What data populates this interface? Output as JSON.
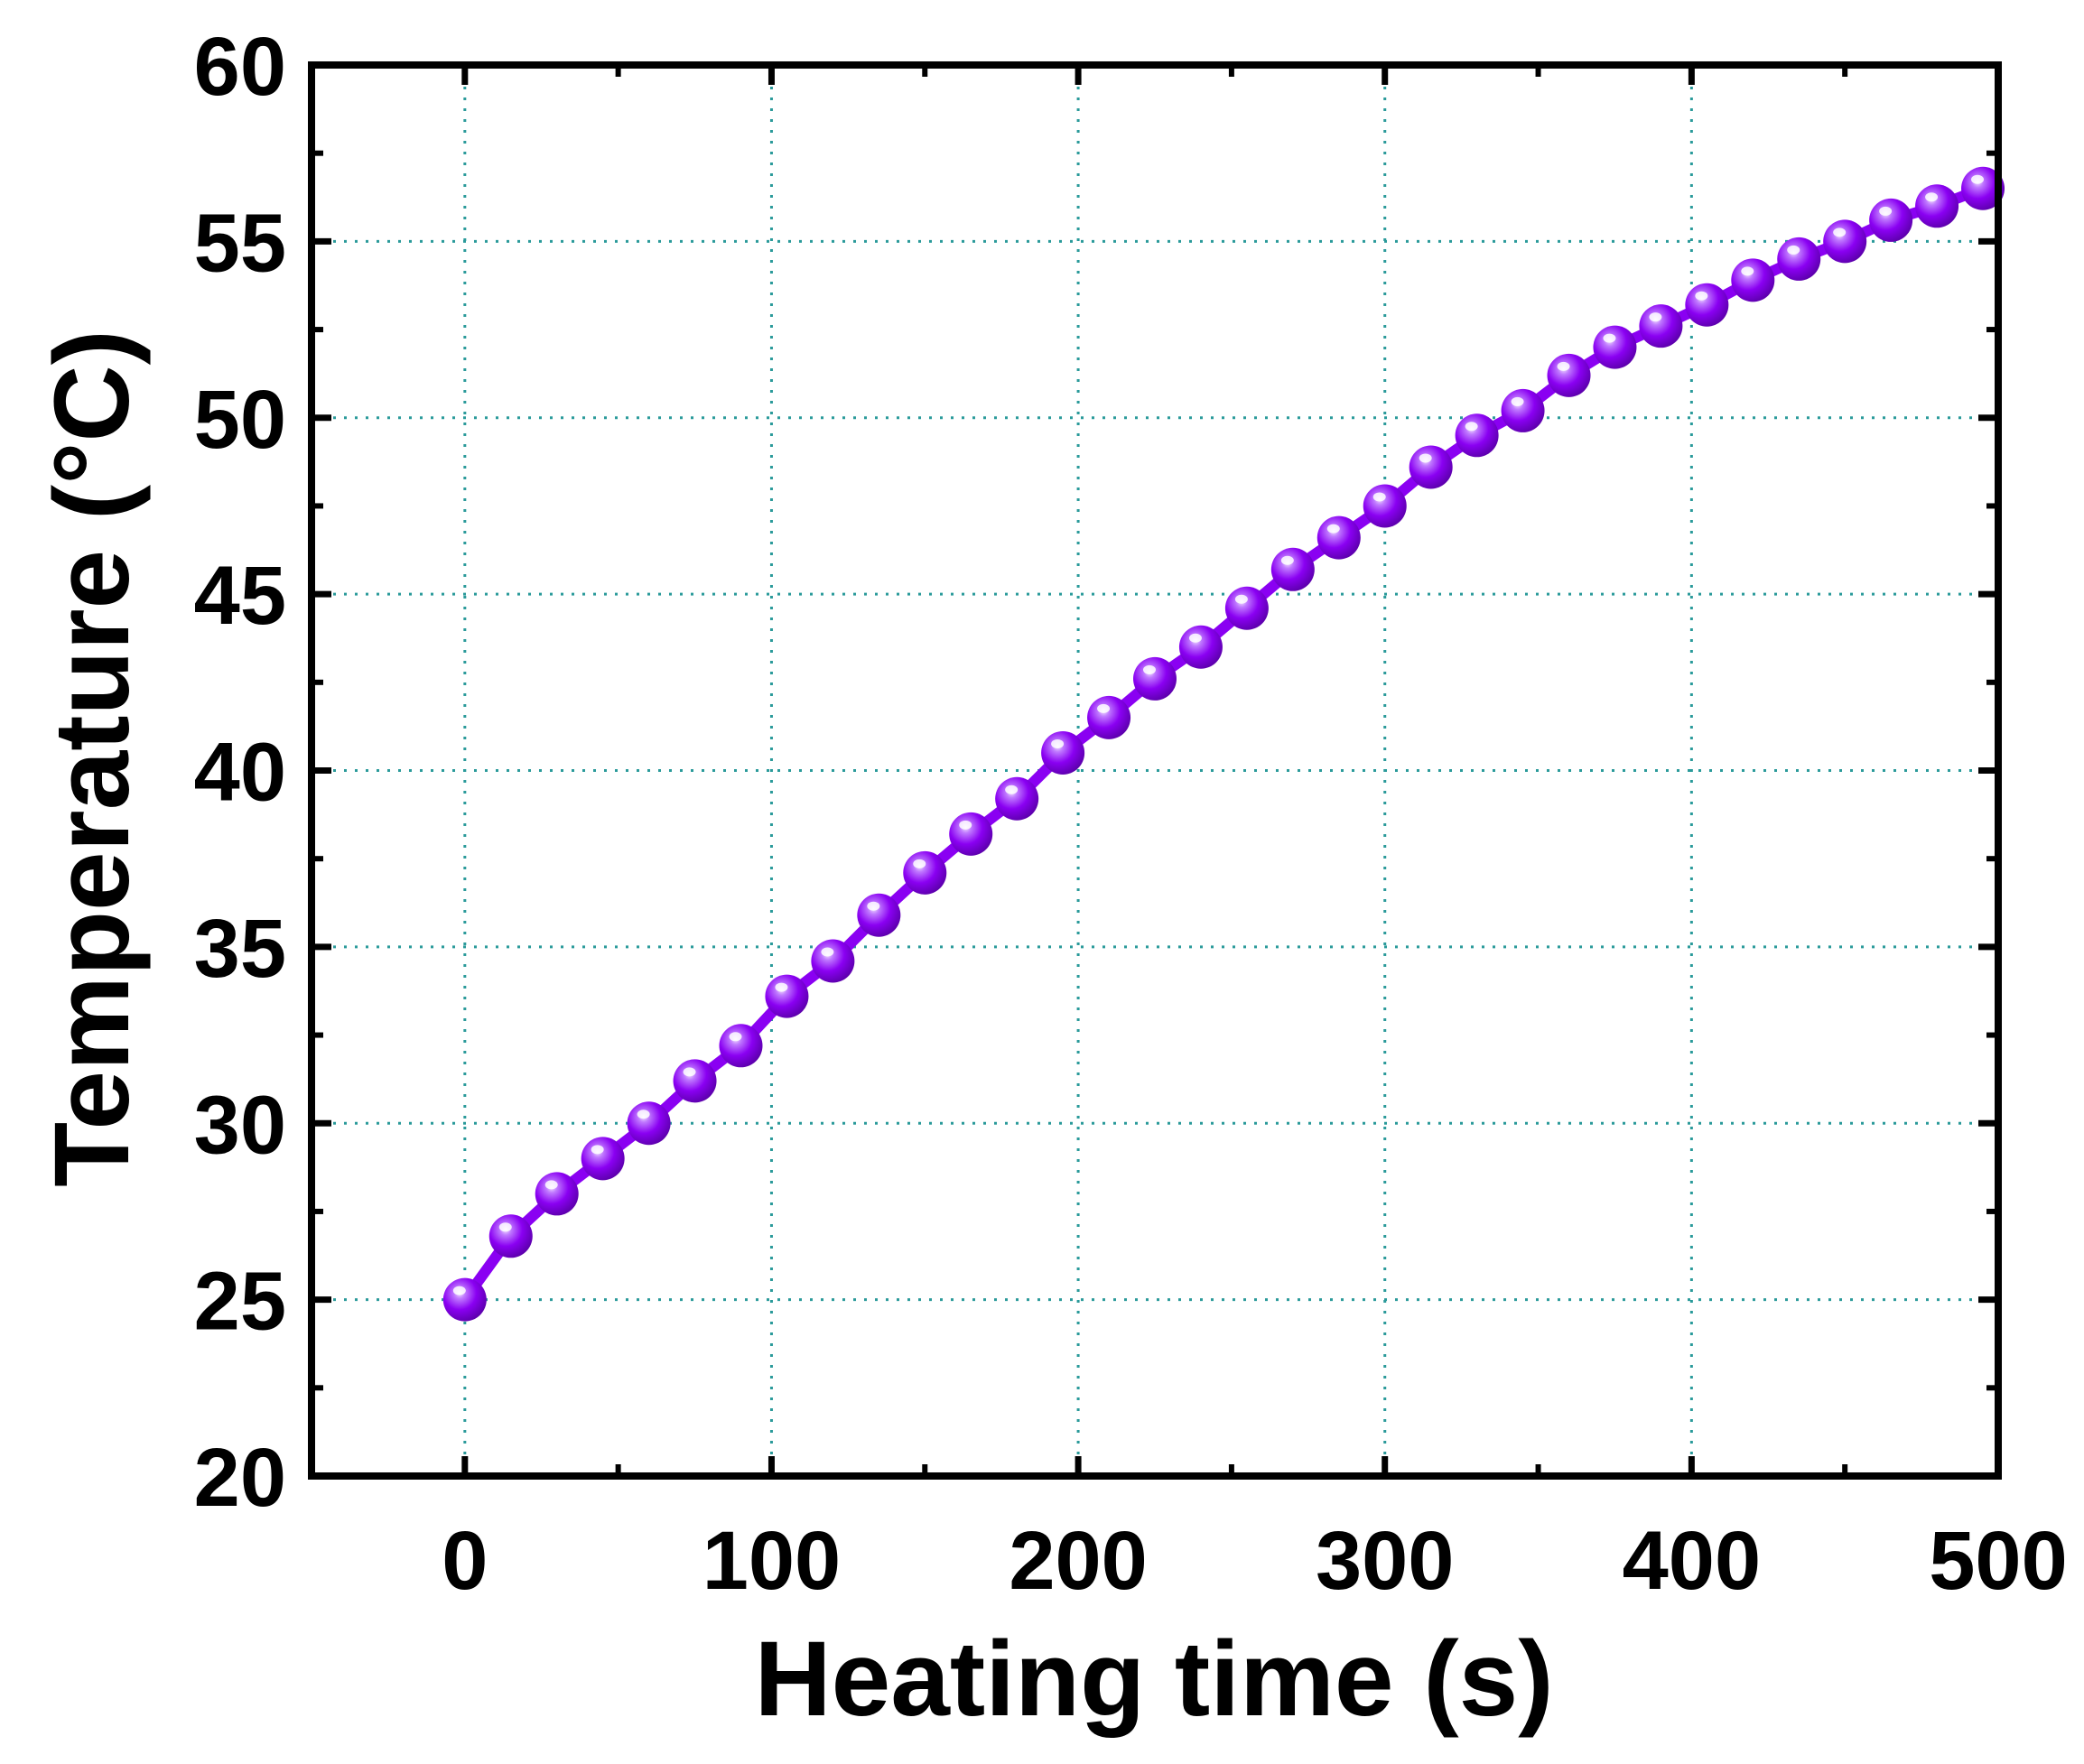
{
  "chart_data": {
    "type": "line",
    "xlabel": "Heating time (s)",
    "ylabel": "Temperature (°C)",
    "xlim": [
      -50,
      500
    ],
    "ylim": [
      20,
      60
    ],
    "xticks": [
      0,
      100,
      200,
      300,
      400,
      500
    ],
    "yticks": [
      20,
      25,
      30,
      35,
      40,
      45,
      50,
      55,
      60
    ],
    "grid": true,
    "colors": {
      "series": "#8a00f2",
      "grid": "#2a9a9a",
      "axis": "#000000"
    },
    "series": [
      {
        "marker": "sphere",
        "x": [
          0,
          15,
          30,
          45,
          60,
          75,
          90,
          105,
          120,
          135,
          150,
          165,
          180,
          195,
          210,
          225,
          240,
          255,
          270,
          285,
          300,
          315,
          330,
          345,
          360,
          375,
          390,
          405,
          420,
          435,
          450,
          465,
          480,
          495
        ],
        "y": [
          25.0,
          26.8,
          28.0,
          29.0,
          30.0,
          31.2,
          32.2,
          33.6,
          34.6,
          35.9,
          37.1,
          38.2,
          39.2,
          40.5,
          41.5,
          42.6,
          43.5,
          44.6,
          45.7,
          46.6,
          47.5,
          48.6,
          49.5,
          50.2,
          51.2,
          52.0,
          52.6,
          53.2,
          53.9,
          54.5,
          55.0,
          55.6,
          56.0,
          56.5
        ]
      }
    ]
  }
}
